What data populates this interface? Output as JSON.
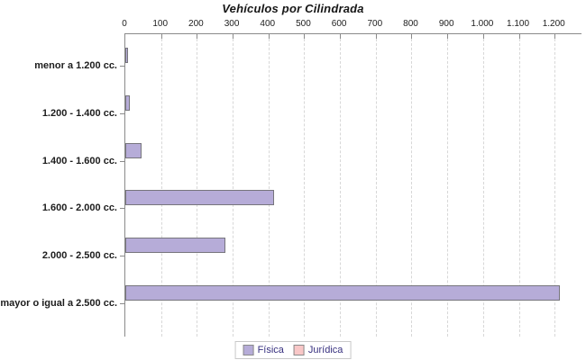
{
  "title": "Vehículos por Cilindrada",
  "chart_data": {
    "type": "bar",
    "orientation": "horizontal",
    "title": "Vehículos por Cilindrada",
    "categories": [
      "menor a 1.200 cc.",
      "1.200 - 1.400 cc.",
      "1.400 - 1.600 cc.",
      "1.600 - 2.000 cc.",
      "2.000 - 2.500 cc.",
      "mayor o igual a 2.500 cc."
    ],
    "series": [
      {
        "name": "Física",
        "color": "#b6acd8",
        "values": [
          5,
          13,
          45,
          415,
          280,
          1215
        ]
      },
      {
        "name": "Jurídica",
        "color": "#f9c7c7",
        "values": [
          0,
          0,
          0,
          0,
          0,
          0
        ]
      }
    ],
    "xlim": [
      0,
      1275
    ],
    "x_tick_values": [
      0,
      100,
      200,
      300,
      400,
      500,
      600,
      700,
      800,
      900,
      1000,
      1100,
      1200
    ],
    "x_tick_labels": [
      "0",
      "100",
      "200",
      "300",
      "400",
      "500",
      "600",
      "700",
      "800",
      "900",
      "1.000",
      "1.100",
      "1.200"
    ],
    "grid": "vertical-dashed",
    "legend_position": "bottom-center"
  },
  "legend": {
    "items": [
      {
        "label": "Física",
        "color": "#b6acd8"
      },
      {
        "label": "Jurídica",
        "color": "#f9c7c7"
      }
    ]
  },
  "colors": {
    "bar_fill": "#b6acd8",
    "bar_border": "#76757c",
    "secondary_fill": "#f9c7c7",
    "axis": "#8a8a8a",
    "gridline": "#d7d7d7",
    "legend_text": "#37307f",
    "text": "#1c1c1c",
    "background": "#ffffff"
  }
}
